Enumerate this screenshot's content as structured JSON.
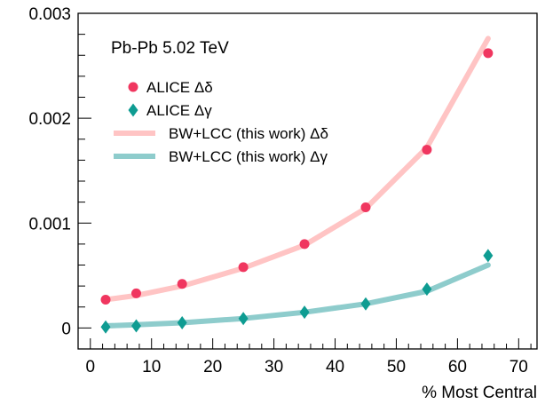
{
  "chart_data": {
    "type": "scatter",
    "xlabel": "% Most Central",
    "ylabel": "",
    "xlim": [
      -2,
      73
    ],
    "ylim": [
      -0.0002,
      0.003
    ],
    "xticks": [
      0,
      10,
      20,
      30,
      40,
      50,
      60,
      70
    ],
    "xtick_labels": [
      "0",
      "10",
      "20",
      "30",
      "40",
      "50",
      "60",
      "70"
    ],
    "yticks": [
      0,
      0.001,
      0.002,
      0.003
    ],
    "ytick_labels": [
      "0",
      "0.001",
      "0.002",
      "0.003"
    ],
    "grid": false,
    "legend_position": "top-left",
    "annotation": "Pb-Pb 5.02 TeV",
    "series": [
      {
        "name": "ALICE Δδ",
        "kind": "points",
        "marker": "circle",
        "color": "#f0365f",
        "x": [
          2.5,
          7.5,
          15,
          25,
          35,
          45,
          55,
          65
        ],
        "y": [
          0.00027,
          0.00033,
          0.00042,
          0.00058,
          0.0008,
          0.00115,
          0.0017,
          0.00262
        ]
      },
      {
        "name": "ALICE Δγ",
        "kind": "points",
        "marker": "diamond",
        "color": "#0e9c92",
        "x": [
          2.5,
          7.5,
          15,
          25,
          35,
          45,
          55,
          65
        ],
        "y": [
          1e-05,
          2e-05,
          5e-05,
          9e-05,
          0.00015,
          0.00023,
          0.00037,
          0.00069
        ]
      },
      {
        "name": "BW+LCC (this work) Δδ",
        "kind": "line",
        "color": "#ffc4c4",
        "x": [
          2.5,
          7.5,
          15,
          25,
          35,
          45,
          55,
          65
        ],
        "y": [
          0.00027,
          0.00031,
          0.0004,
          0.00057,
          0.00079,
          0.00114,
          0.00172,
          0.00276
        ]
      },
      {
        "name": "BW+LCC (this work) Δγ",
        "kind": "line",
        "color": "#8ecccc",
        "x": [
          2.5,
          7.5,
          15,
          25,
          35,
          45,
          55,
          65
        ],
        "y": [
          2e-05,
          3e-05,
          5e-05,
          9e-05,
          0.00015,
          0.00023,
          0.00035,
          0.0006
        ]
      }
    ]
  }
}
